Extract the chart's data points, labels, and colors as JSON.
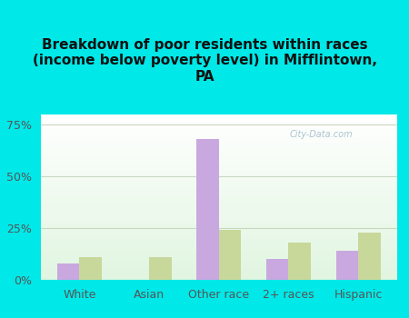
{
  "title": "Breakdown of poor residents within races\n(income below poverty level) in Mifflintown,\nPA",
  "categories": [
    "White",
    "Asian",
    "Other race",
    "2+ races",
    "Hispanic"
  ],
  "mifflintown_values": [
    8,
    0,
    68,
    10,
    14
  ],
  "pennsylvania_values": [
    11,
    11,
    24,
    18,
    23
  ],
  "mifflintown_color": "#c9a8e0",
  "pennsylvania_color": "#c8d89a",
  "background_color": "#00e8e8",
  "ylim": [
    0,
    80
  ],
  "yticks": [
    0,
    25,
    50,
    75
  ],
  "ytick_labels": [
    "0%",
    "25%",
    "50%",
    "75%"
  ],
  "bar_width": 0.32,
  "title_fontsize": 11,
  "tick_fontsize": 9,
  "legend_fontsize": 10,
  "grid_color": "#c8d8c0",
  "watermark": "City-Data.com"
}
